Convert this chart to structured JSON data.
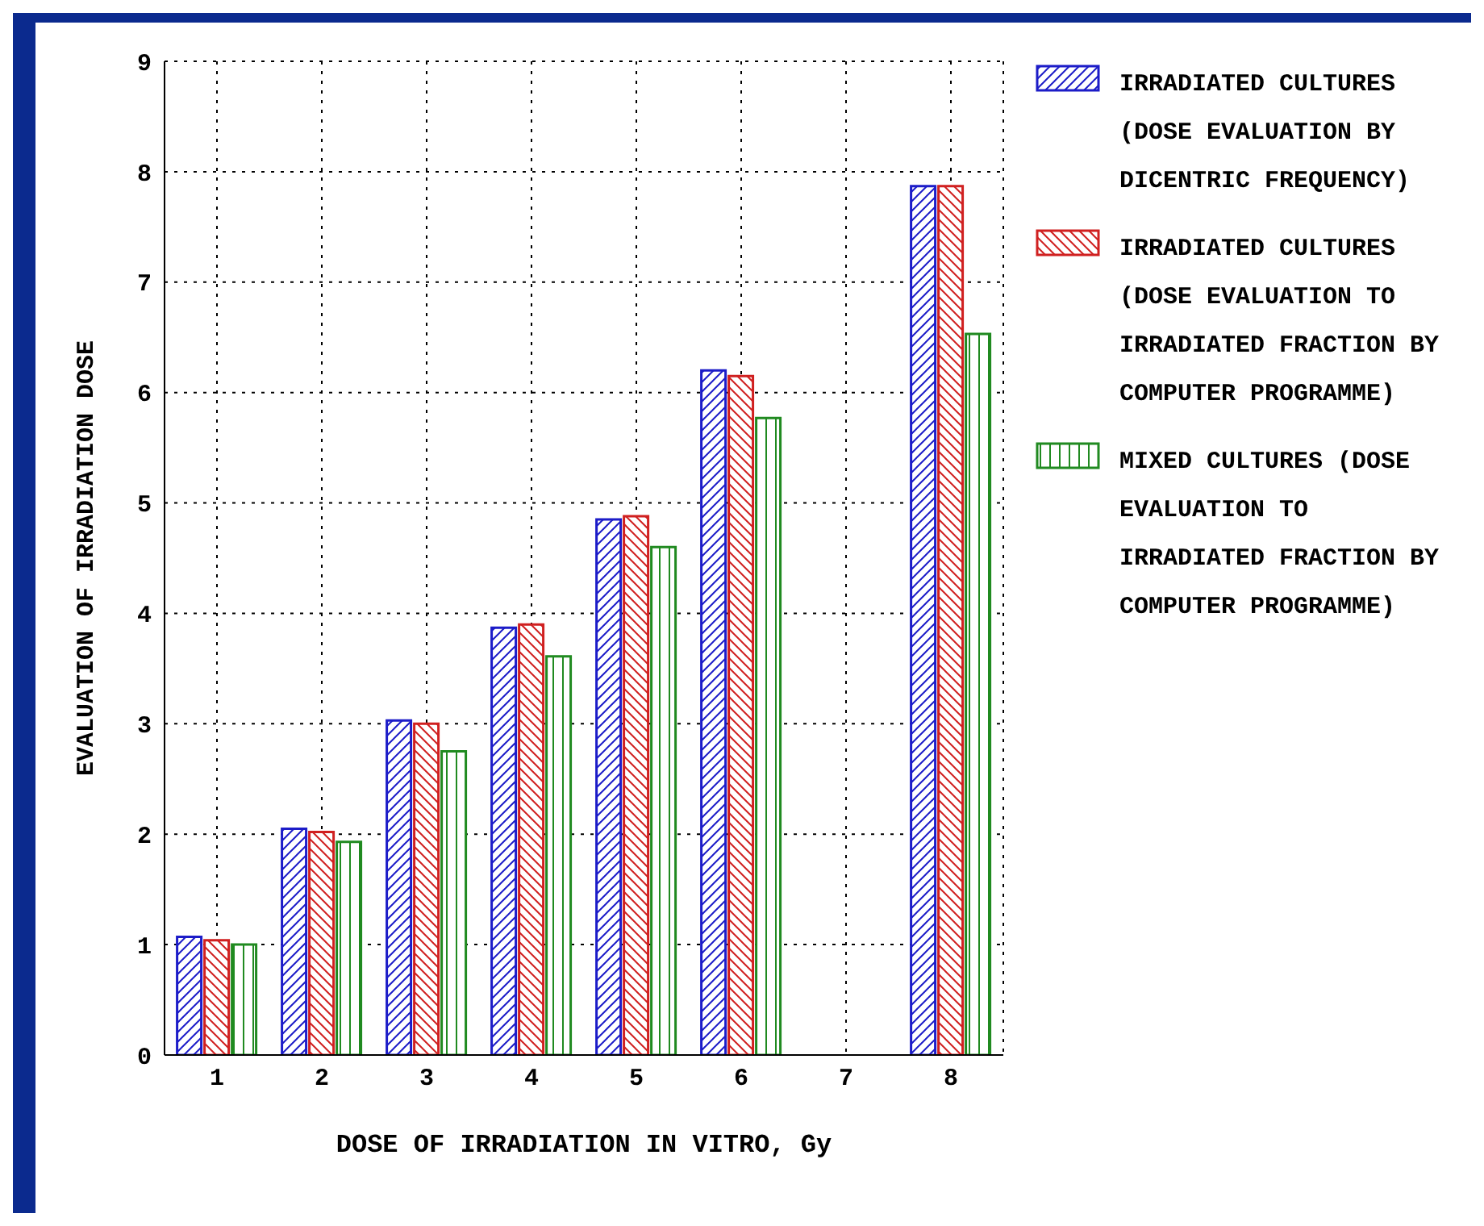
{
  "chart_data": {
    "type": "bar",
    "xlabel": "DOSE OF IRRADIATION IN VITRO, Gy",
    "ylabel": "EVALUATION OF IRRADIATION DOSE",
    "categories": [
      "1",
      "2",
      "3",
      "4",
      "5",
      "6",
      "7",
      "8"
    ],
    "series": [
      {
        "name": "IRRADIATED CULTURES (DOSE EVALUATION BY DICENTRIC FREQUENCY)",
        "color": "#1c1cc8",
        "values": [
          1.07,
          2.05,
          3.03,
          3.87,
          4.85,
          6.2,
          null,
          7.87
        ]
      },
      {
        "name": "IRRADIATED CULTURES (DOSE EVALUATION TO IRRADIATED FRACTION BY COMPUTER PROGRAMME)",
        "color": "#d02020",
        "values": [
          1.04,
          2.02,
          3.0,
          3.9,
          4.88,
          6.15,
          null,
          7.87
        ]
      },
      {
        "name": "MIXED CULTURES (DOSE EVALUATION TO IRRADIATED FRACTION BY COMPUTER PROGRAMME)",
        "color": "#208a20",
        "values": [
          1.0,
          1.93,
          2.75,
          3.61,
          4.6,
          5.77,
          null,
          6.53
        ]
      }
    ],
    "ylim": [
      0,
      9
    ],
    "yticks": [
      0,
      1,
      2,
      3,
      4,
      5,
      6,
      7,
      8,
      9
    ],
    "grid": true,
    "legend": "right"
  }
}
